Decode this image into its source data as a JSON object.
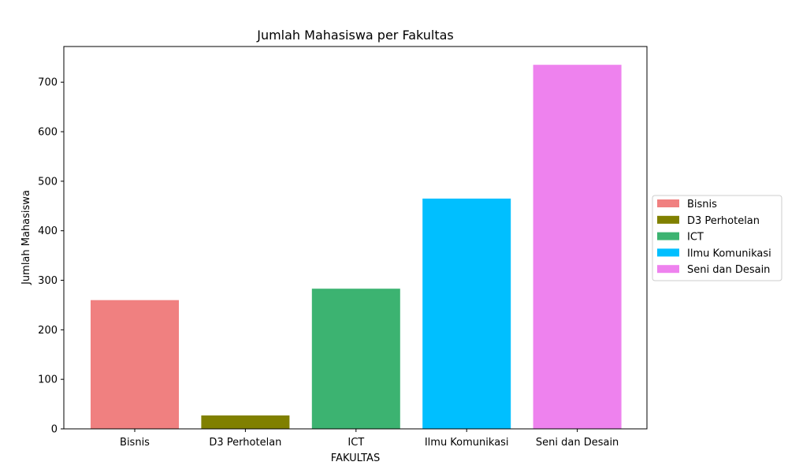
{
  "chart_data": {
    "type": "bar",
    "title": "Jumlah Mahasiswa per Fakultas",
    "xlabel": "FAKULTAS",
    "ylabel": "Jumlah Mahasiswa",
    "categories": [
      "Bisnis",
      "D3 Perhotelan",
      "ICT",
      "Ilmu Komunikasi",
      "Seni dan Desain"
    ],
    "values": [
      260,
      27,
      283,
      465,
      735
    ],
    "colors": [
      "#f08080",
      "#808000",
      "#3cb371",
      "#00bfff",
      "#ee82ee"
    ],
    "ylim": [
      0,
      772
    ],
    "yticks": [
      0,
      100,
      200,
      300,
      400,
      500,
      600,
      700
    ],
    "legend": {
      "placement": "center-right",
      "entries": [
        "Bisnis",
        "D3 Perhotelan",
        "ICT",
        "Ilmu Komunikasi",
        "Seni dan Desain"
      ]
    },
    "grid": false
  }
}
